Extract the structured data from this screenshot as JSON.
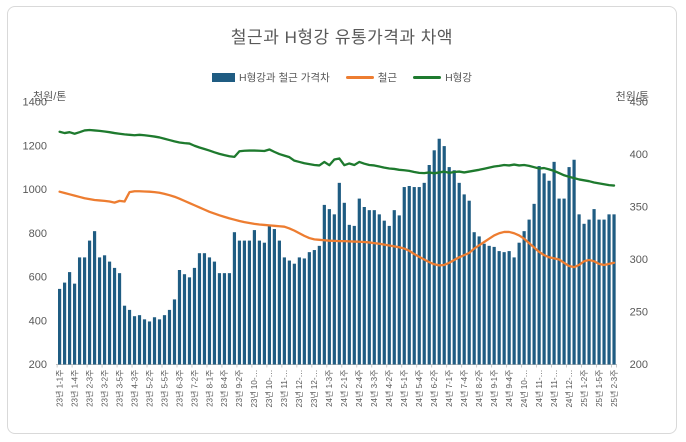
{
  "chart": {
    "title": "철근과 H형강 유통가격과 차액",
    "left_axis": {
      "unit": "천원/톤",
      "min": 200,
      "max": 1400,
      "ticks": [
        1400,
        1200,
        1000,
        800,
        600,
        400,
        200
      ]
    },
    "right_axis": {
      "unit": "천원/톤",
      "min": 200,
      "max": 450,
      "ticks": [
        450,
        400,
        350,
        300,
        250,
        200
      ]
    },
    "legend": [
      {
        "label": "H형강과 철근 가격차",
        "type": "bar",
        "color": "#1F5C82"
      },
      {
        "label": "철근",
        "type": "line",
        "color": "#ED7D31"
      },
      {
        "label": "H형강",
        "type": "line",
        "color": "#1E7A2E"
      }
    ],
    "text_color": "#595959",
    "axis_line_color": "#BFBFBF"
  },
  "chart_data": {
    "type": "combo_bar_line",
    "weeks_count": 112,
    "label_every_n_weeks": 3,
    "x_tick_labels": [
      "23년 1-1주",
      "23년 1-4주",
      "23년 2-3주",
      "23년 3-2주",
      "23년 3-5주",
      "23년 4-3주",
      "23년 5-2주",
      "23년 5-5주",
      "23년 6-3주",
      "23년 7-2주",
      "23년 8-1주",
      "23년 8-4주",
      "23년 9-2주",
      "23년 10-…",
      "23년 10-…",
      "23년 11-…",
      "23년 12-…",
      "23년 12-…",
      "24년 1-3주",
      "24년 2-1주",
      "24년 2-4주",
      "24년 3-3주",
      "24년 4-2주",
      "24년 5-1주",
      "24년 5-4주",
      "24년 6-2주",
      "24년 7-1주",
      "24년 7-4주",
      "24년 8-2주",
      "24년 9-1주",
      "24년 9-4주",
      "24년 10-…",
      "24년 11-…",
      "24년 11-…",
      "24년 12-…",
      "25년 1-2주",
      "25년 1-5주",
      "25년 2-3주"
    ],
    "legend_position": "top",
    "grid": false,
    "series": [
      {
        "name": "H형강과 철근 가격차",
        "type": "bar",
        "axis": "right",
        "color": "#1F5C82",
        "values": [
          272,
          278,
          288,
          277,
          302,
          302,
          318,
          327,
          302,
          304,
          298,
          292,
          287,
          256,
          252,
          246,
          247,
          243,
          241,
          245,
          243,
          247,
          252,
          262,
          290,
          286,
          283,
          292,
          306,
          306,
          302,
          298,
          287,
          287,
          287,
          326,
          318,
          318,
          318,
          328,
          318,
          316,
          333,
          329,
          318,
          302,
          299,
          296,
          302,
          301,
          307,
          309,
          313,
          352,
          348,
          343,
          373,
          354,
          333,
          332,
          358,
          350,
          347,
          347,
          343,
          337,
          332,
          347,
          342,
          369,
          370,
          369,
          369,
          373,
          390,
          404,
          415,
          408,
          388,
          385,
          373,
          362,
          356,
          326,
          322,
          315,
          313,
          312,
          308,
          307,
          308,
          302,
          316,
          327,
          338,
          353,
          389,
          382,
          375,
          393,
          358,
          358,
          388,
          395,
          343,
          334,
          338,
          348,
          338,
          338,
          343,
          343
        ]
      },
      {
        "name": "철근",
        "type": "line",
        "axis": "left",
        "color": "#ED7D31",
        "values": [
          990,
          984,
          978,
          972,
          966,
          960,
          956,
          952,
          950,
          948,
          945,
          940,
          948,
          945,
          988,
          992,
          992,
          991,
          990,
          988,
          985,
          980,
          974,
          967,
          958,
          948,
          938,
          928,
          918,
          908,
          898,
          890,
          882,
          875,
          868,
          862,
          856,
          851,
          847,
          843,
          840,
          838,
          836,
          834,
          832,
          830,
          822,
          812,
          800,
          788,
          778,
          772,
          770,
          768,
          766,
          765,
          764,
          764,
          763,
          762,
          761,
          760,
          758,
          755,
          752,
          748,
          744,
          740,
          736,
          730,
          720,
          705,
          692,
          680,
          668,
          658,
          653,
          655,
          665,
          678,
          690,
          700,
          710,
          730,
          745,
          760,
          775,
          790,
          800,
          806,
          806,
          800,
          790,
          775,
          755,
          735,
          715,
          700,
          690,
          685,
          680,
          665,
          650,
          645,
          655,
          672,
          678,
          672,
          660,
          655,
          660,
          665
        ]
      },
      {
        "name": "H형강",
        "type": "line",
        "axis": "left",
        "color": "#1E7A2E",
        "values": [
          1264,
          1258,
          1262,
          1255,
          1262,
          1270,
          1272,
          1270,
          1268,
          1265,
          1262,
          1258,
          1255,
          1252,
          1250,
          1248,
          1250,
          1248,
          1245,
          1242,
          1238,
          1232,
          1226,
          1220,
          1215,
          1212,
          1210,
          1200,
          1192,
          1185,
          1178,
          1170,
          1163,
          1157,
          1152,
          1149,
          1175,
          1177,
          1178,
          1178,
          1177,
          1176,
          1183,
          1172,
          1162,
          1155,
          1148,
          1132,
          1126,
          1120,
          1116,
          1112,
          1110,
          1126,
          1111,
          1137,
          1142,
          1111,
          1119,
          1112,
          1126,
          1118,
          1112,
          1110,
          1105,
          1100,
          1096,
          1094,
          1090,
          1088,
          1085,
          1080,
          1076,
          1075,
          1078,
          1074,
          1078,
          1082,
          1076,
          1080,
          1082,
          1078,
          1082,
          1086,
          1090,
          1095,
          1100,
          1105,
          1108,
          1112,
          1110,
          1114,
          1110,
          1112,
          1108,
          1102,
          1096,
          1098,
          1092,
          1085,
          1075,
          1065,
          1058,
          1052,
          1046,
          1042,
          1038,
          1032,
          1028,
          1024,
          1020,
          1018
        ]
      }
    ]
  }
}
